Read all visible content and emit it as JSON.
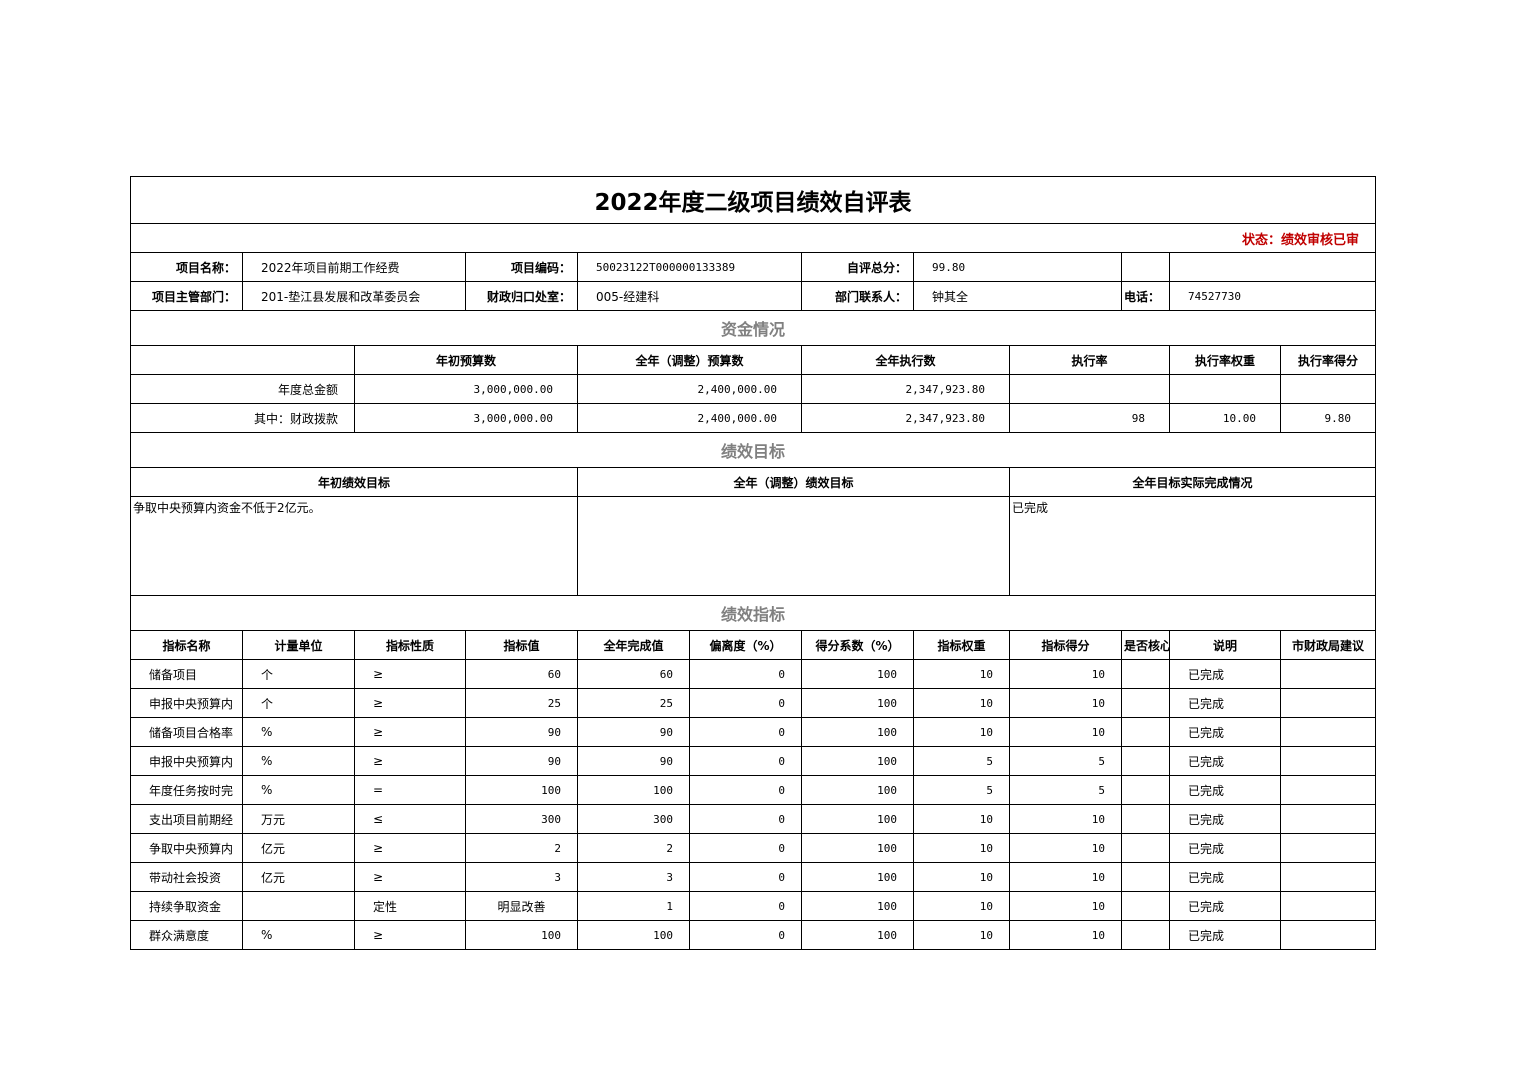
{
  "title": "2022年度二级项目绩效自评表",
  "status": "状态：绩效审核已审",
  "info": {
    "project_name_label": "项目名称：",
    "project_name": "2022年项目前期工作经费",
    "project_code_label": "项目编码：",
    "project_code": "50023122T000000133389",
    "score_label": "自评总分：",
    "score": "99.80",
    "dept_label": "项目主管部门：",
    "dept": "201-垫江县发展和改革委员会",
    "finance_label": "财政归口处室：",
    "finance": "005-经建科",
    "contact_label": "部门联系人：",
    "contact": "钟其全",
    "phone_label": "电话：",
    "phone": "74527730"
  },
  "funds": {
    "section": "资金情况",
    "headers": [
      "年初预算数",
      "全年（调整）预算数",
      "全年执行数",
      "执行率",
      "执行率权重",
      "执行率得分"
    ],
    "rows": [
      [
        "年度总金额",
        "3,000,000.00",
        "2,400,000.00",
        "2,347,923.80",
        "",
        "",
        ""
      ],
      [
        "其中：财政拨款",
        "3,000,000.00",
        "2,400,000.00",
        "2,347,923.80",
        "98",
        "10.00",
        "9.80"
      ]
    ]
  },
  "goals": {
    "section": "绩效目标",
    "headers": [
      "年初绩效目标",
      "全年（调整）绩效目标",
      "全年目标实际完成情况"
    ],
    "values": [
      "争取中央预算内资金不低于2亿元。",
      "",
      "已完成"
    ]
  },
  "indicators": {
    "section": "绩效指标",
    "headers": [
      "指标名称",
      "计量单位",
      "指标性质",
      "指标值",
      "全年完成值",
      "偏离度（%）",
      "得分系数（%）",
      "指标权重",
      "指标得分",
      "是否核心指标",
      "说明",
      "市财政局建议"
    ],
    "rows": [
      [
        "储备项目",
        "个",
        "≥",
        "60",
        "60",
        "0",
        "100",
        "10",
        "10",
        "",
        "已完成",
        ""
      ],
      [
        "申报中央预算内",
        "个",
        "≥",
        "25",
        "25",
        "0",
        "100",
        "10",
        "10",
        "",
        "已完成",
        ""
      ],
      [
        "储备项目合格率",
        "%",
        "≥",
        "90",
        "90",
        "0",
        "100",
        "10",
        "10",
        "",
        "已完成",
        ""
      ],
      [
        "申报中央预算内",
        "%",
        "≥",
        "90",
        "90",
        "0",
        "100",
        "5",
        "5",
        "",
        "已完成",
        ""
      ],
      [
        "年度任务按时完",
        "%",
        "=",
        "100",
        "100",
        "0",
        "100",
        "5",
        "5",
        "",
        "已完成",
        ""
      ],
      [
        "支出项目前期经",
        "万元",
        "≤",
        "300",
        "300",
        "0",
        "100",
        "10",
        "10",
        "",
        "已完成",
        ""
      ],
      [
        "争取中央预算内",
        "亿元",
        "≥",
        "2",
        "2",
        "0",
        "100",
        "10",
        "10",
        "",
        "已完成",
        ""
      ],
      [
        "带动社会投资",
        "亿元",
        "≥",
        "3",
        "3",
        "0",
        "100",
        "10",
        "10",
        "",
        "已完成",
        ""
      ],
      [
        "持续争取资金",
        "",
        "定性",
        "明显改善",
        "1",
        "0",
        "100",
        "10",
        "10",
        "",
        "已完成",
        ""
      ],
      [
        "群众满意度",
        "%",
        "≥",
        "100",
        "100",
        "0",
        "100",
        "10",
        "10",
        "",
        "已完成",
        ""
      ]
    ]
  }
}
